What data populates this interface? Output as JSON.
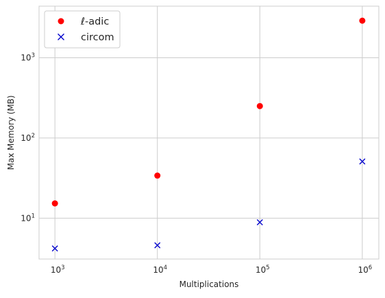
{
  "chart_data": {
    "type": "scatter",
    "title": "",
    "xlabel": "Multiplications",
    "ylabel": "Max Memory (MB)",
    "xscale": "log",
    "yscale": "log",
    "xlim": [
      700,
      1450000
    ],
    "ylim": [
      3.1,
      4400
    ],
    "grid": true,
    "legend_position": "top-left",
    "x_ticks": [
      {
        "value": 1000,
        "base": "10",
        "exp": "3"
      },
      {
        "value": 10000,
        "base": "10",
        "exp": "4"
      },
      {
        "value": 100000,
        "base": "10",
        "exp": "5"
      },
      {
        "value": 1000000,
        "base": "10",
        "exp": "6"
      }
    ],
    "y_ticks": [
      {
        "value": 10,
        "base": "10",
        "exp": "1"
      },
      {
        "value": 100,
        "base": "10",
        "exp": "2"
      },
      {
        "value": 1000,
        "base": "10",
        "exp": "3"
      }
    ],
    "series": [
      {
        "name": "ℓ-adic",
        "marker": "circle",
        "color": "#ff0000",
        "x": [
          1000,
          10000,
          100000,
          1000000
        ],
        "y": [
          15.3,
          34,
          250,
          2900
        ]
      },
      {
        "name": "circom",
        "marker": "x",
        "color": "#0000cc",
        "x": [
          1000,
          10000,
          100000,
          1000000
        ],
        "y": [
          4.2,
          4.6,
          8.9,
          51
        ]
      }
    ]
  }
}
